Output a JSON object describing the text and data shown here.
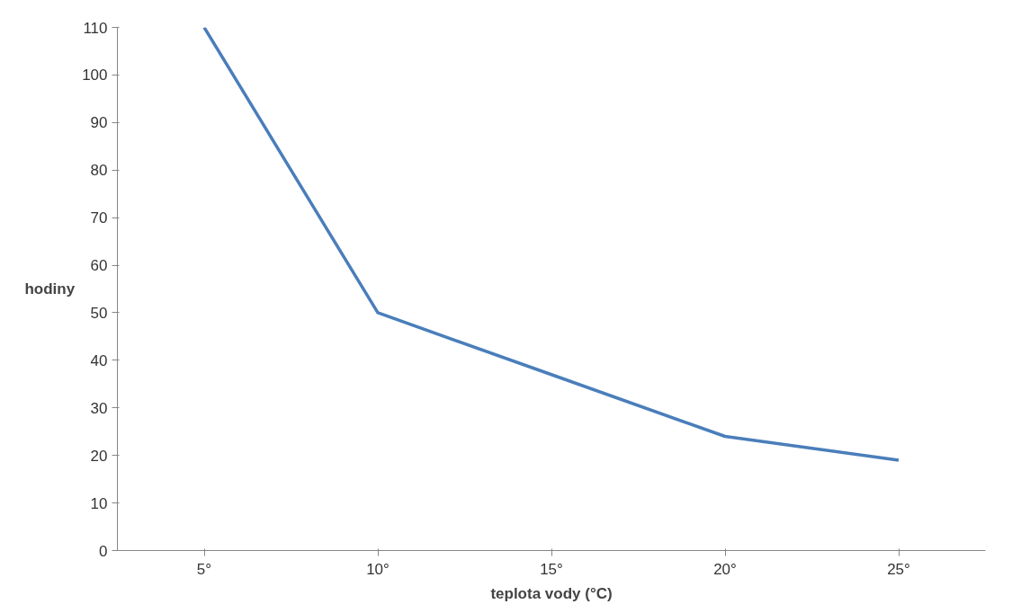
{
  "chart_data": {
    "type": "line",
    "xlabel": "teplota vody (°C)",
    "ylabel": "hodiny",
    "categories": [
      "5°",
      "10°",
      "15°",
      "20°",
      "25°"
    ],
    "series": [
      {
        "color": "#4a7ebb",
        "values": [
          110,
          50,
          37,
          24,
          19
        ]
      }
    ],
    "ylim": [
      0,
      110
    ],
    "yticks": [
      0,
      10,
      20,
      30,
      40,
      50,
      60,
      70,
      80,
      90,
      100,
      110
    ],
    "grid": false,
    "line_style": "solid",
    "marker": "none"
  }
}
